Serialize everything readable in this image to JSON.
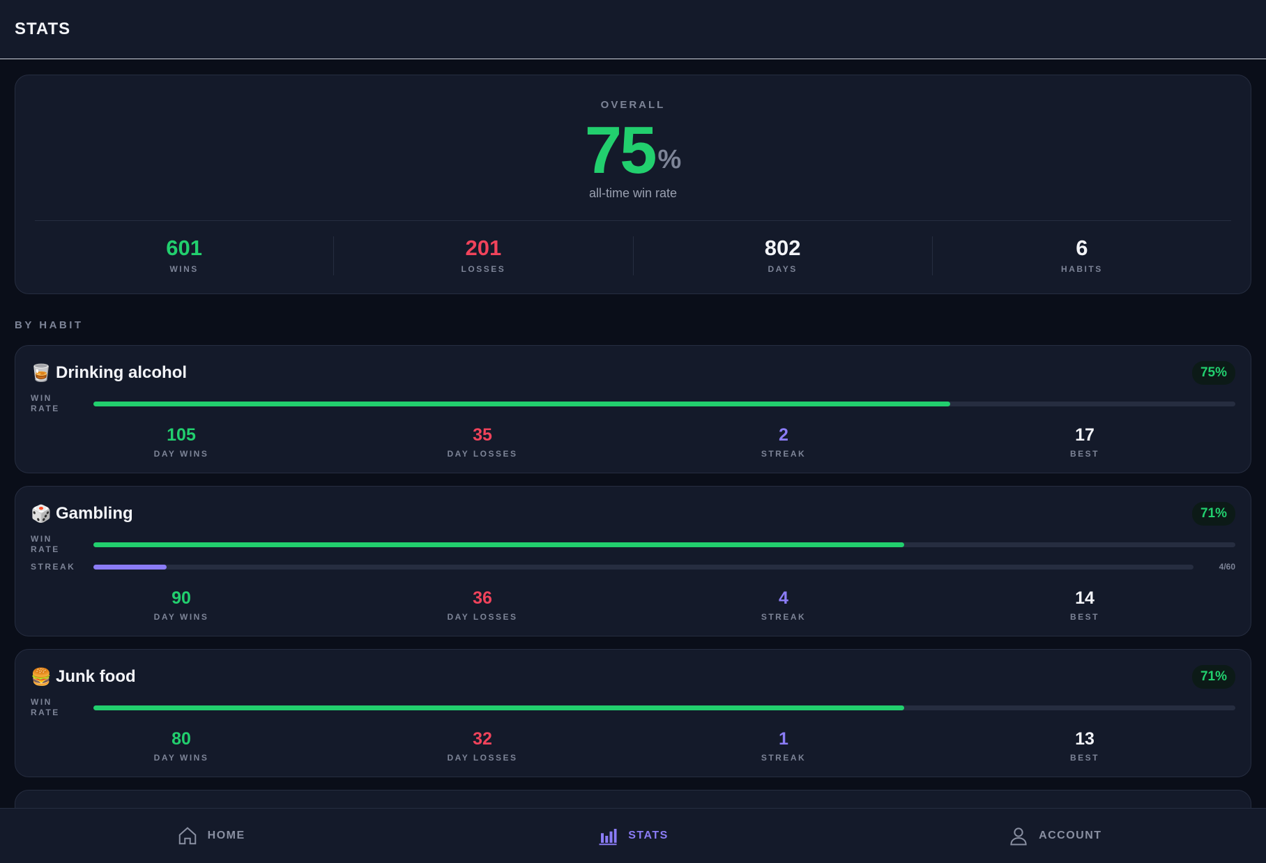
{
  "header": {
    "title": "STATS"
  },
  "overall": {
    "label": "OVERALL",
    "win_rate": 75,
    "unit": "%",
    "caption": "all-time win rate",
    "stats": [
      {
        "value": 601,
        "label": "WINS",
        "color": "#22cf6e"
      },
      {
        "value": 201,
        "label": "LOSSES",
        "color": "#f0435b"
      },
      {
        "value": 802,
        "label": "DAYS",
        "color": "#f3f4f8"
      },
      {
        "value": 6,
        "label": "HABITS",
        "color": "#f3f4f8"
      }
    ]
  },
  "section_title": "BY HABIT",
  "habits": [
    {
      "icon": "🥃",
      "name": "Drinking alcohol",
      "win_rate": 75,
      "win_rate_label": "75%",
      "win_rate_caption": "WIN RATE",
      "stats": [
        {
          "value": 105,
          "label": "DAY WINS",
          "color": "#22cf6e"
        },
        {
          "value": 35,
          "label": "DAY LOSSES",
          "color": "#f0435b"
        },
        {
          "value": 2,
          "label": "STREAK",
          "color": "#8b7cf6"
        },
        {
          "value": 17,
          "label": "BEST",
          "color": "#f3f4f8"
        }
      ]
    },
    {
      "icon": "🎲",
      "name": "Gambling",
      "win_rate": 71,
      "win_rate_label": "71%",
      "win_rate_caption": "WIN RATE",
      "streak_bar": {
        "caption": "STREAK",
        "value": 4,
        "max": 60,
        "label": "4/60"
      },
      "stats": [
        {
          "value": 90,
          "label": "DAY WINS",
          "color": "#22cf6e"
        },
        {
          "value": 36,
          "label": "DAY LOSSES",
          "color": "#f0435b"
        },
        {
          "value": 4,
          "label": "STREAK",
          "color": "#8b7cf6"
        },
        {
          "value": 14,
          "label": "BEST",
          "color": "#f3f4f8"
        }
      ]
    },
    {
      "icon": "🍔",
      "name": "Junk food",
      "win_rate": 71,
      "win_rate_label": "71%",
      "win_rate_caption": "WIN RATE",
      "stats": [
        {
          "value": 80,
          "label": "DAY WINS",
          "color": "#22cf6e"
        },
        {
          "value": 32,
          "label": "DAY LOSSES",
          "color": "#f0435b"
        },
        {
          "value": 1,
          "label": "STREAK",
          "color": "#8b7cf6"
        },
        {
          "value": 13,
          "label": "BEST",
          "color": "#f3f4f8"
        }
      ]
    }
  ],
  "nav": [
    {
      "label": "HOME"
    },
    {
      "label": "STATS",
      "active": true
    },
    {
      "label": "ACCOUNT"
    }
  ]
}
